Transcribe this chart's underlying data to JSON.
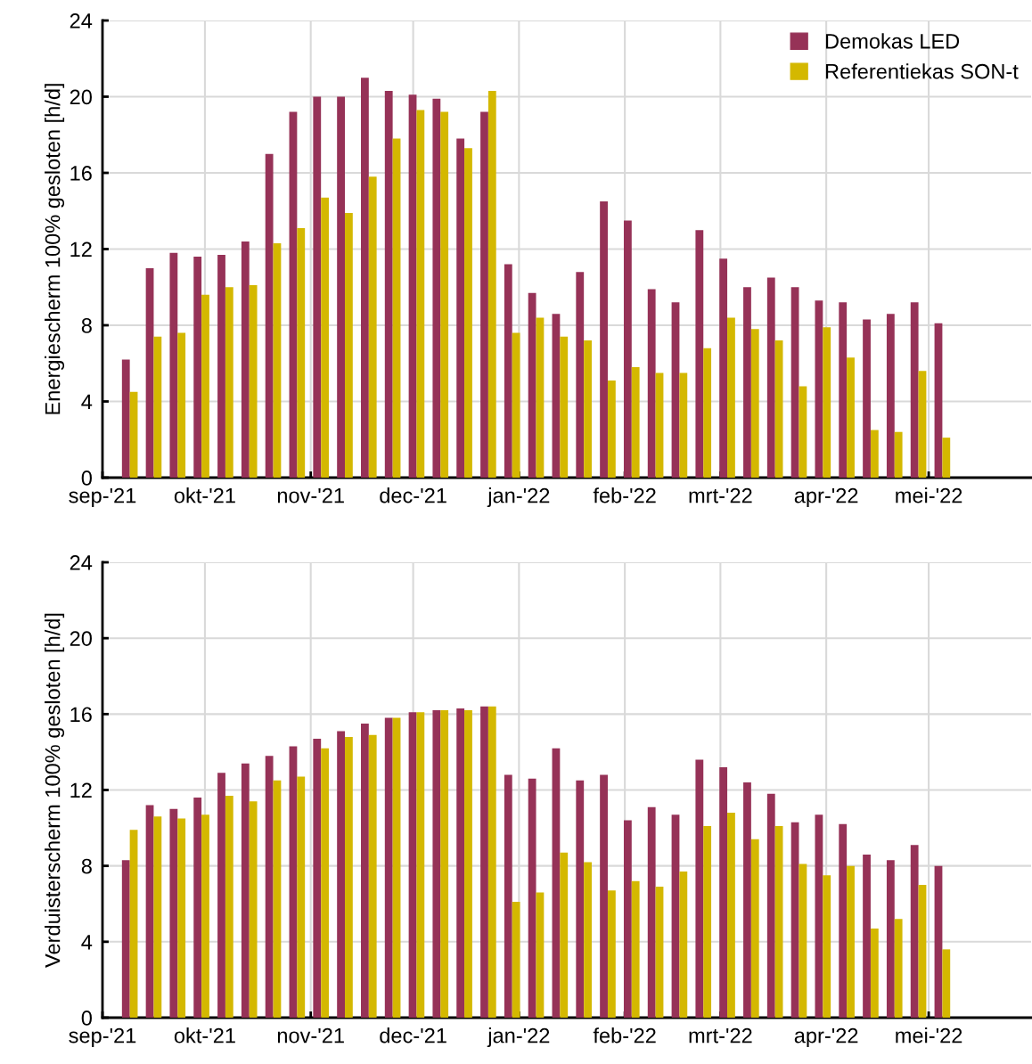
{
  "chart_data": [
    {
      "type": "bar",
      "ylabel": "Energiescherm 100% gesloten [h/d]",
      "x": [
        "2021-09-09",
        "2021-09-16",
        "2021-09-23",
        "2021-09-30",
        "2021-10-07",
        "2021-10-14",
        "2021-10-21",
        "2021-10-28",
        "2021-11-04",
        "2021-11-11",
        "2021-11-18",
        "2021-11-25",
        "2021-12-02",
        "2021-12-09",
        "2021-12-16",
        "2021-12-23",
        "2021-12-30",
        "2022-01-06",
        "2022-01-13",
        "2022-01-20",
        "2022-01-27",
        "2022-02-03",
        "2022-02-10",
        "2022-02-17",
        "2022-02-24",
        "2022-03-03",
        "2022-03-10",
        "2022-03-17",
        "2022-03-24",
        "2022-03-31",
        "2022-04-07",
        "2022-04-14",
        "2022-04-21",
        "2022-04-28",
        "2022-05-05"
      ],
      "series": [
        {
          "name": "Demokas LED",
          "color": "#963257",
          "values": [
            6.2,
            11.0,
            11.8,
            11.6,
            11.7,
            12.4,
            17.0,
            19.2,
            20.0,
            20.0,
            21.0,
            20.3,
            20.1,
            19.9,
            17.8,
            19.2,
            11.2,
            9.7,
            8.6,
            10.8,
            14.5,
            13.5,
            9.9,
            9.2,
            13.0,
            11.5,
            10.0,
            10.5,
            10.0,
            9.3,
            9.2,
            8.3,
            8.6,
            9.2,
            8.1
          ]
        },
        {
          "name": "Referentiekas SON-t",
          "color": "#d4b800",
          "values": [
            4.5,
            7.4,
            7.6,
            9.6,
            10.0,
            10.1,
            12.3,
            13.1,
            14.7,
            13.9,
            15.8,
            17.8,
            19.3,
            19.2,
            17.3,
            20.3,
            7.6,
            8.4,
            7.4,
            7.2,
            5.1,
            5.8,
            5.5,
            5.5,
            6.8,
            8.4,
            7.8,
            7.2,
            4.8,
            7.9,
            6.3,
            2.5,
            2.4,
            5.6,
            2.1
          ]
        }
      ],
      "xlim": [
        "2021-09-01",
        "2022-05-31"
      ],
      "xticks": [
        {
          "value": "2021-09-01",
          "label": "sep-'21"
        },
        {
          "value": "2021-10-01",
          "label": "okt-'21"
        },
        {
          "value": "2021-11-01",
          "label": "nov-'21"
        },
        {
          "value": "2021-12-01",
          "label": "dec-'21"
        },
        {
          "value": "2022-01-01",
          "label": "jan-'22"
        },
        {
          "value": "2022-02-01",
          "label": "feb-'22"
        },
        {
          "value": "2022-03-01",
          "label": "mrt-'22"
        },
        {
          "value": "2022-04-01",
          "label": "apr-'22"
        },
        {
          "value": "2022-05-01",
          "label": "mei-'22"
        }
      ],
      "ylim": [
        0,
        24
      ],
      "yticks": [
        0,
        4,
        8,
        12,
        16,
        20,
        24
      ],
      "grid": true,
      "legend": "top right"
    },
    {
      "type": "bar",
      "ylabel": "Verduisterscherm 100% gesloten [h/d]",
      "x": [
        "2021-09-09",
        "2021-09-16",
        "2021-09-23",
        "2021-09-30",
        "2021-10-07",
        "2021-10-14",
        "2021-10-21",
        "2021-10-28",
        "2021-11-04",
        "2021-11-11",
        "2021-11-18",
        "2021-11-25",
        "2021-12-02",
        "2021-12-09",
        "2021-12-16",
        "2021-12-23",
        "2021-12-30",
        "2022-01-06",
        "2022-01-13",
        "2022-01-20",
        "2022-01-27",
        "2022-02-03",
        "2022-02-10",
        "2022-02-17",
        "2022-02-24",
        "2022-03-03",
        "2022-03-10",
        "2022-03-17",
        "2022-03-24",
        "2022-03-31",
        "2022-04-07",
        "2022-04-14",
        "2022-04-21",
        "2022-04-28",
        "2022-05-05"
      ],
      "series": [
        {
          "color": "#963257",
          "values": [
            8.3,
            11.2,
            11.0,
            11.6,
            12.9,
            13.4,
            13.8,
            14.3,
            14.7,
            15.1,
            15.5,
            15.8,
            16.1,
            16.2,
            16.3,
            16.4,
            12.8,
            12.6,
            14.2,
            12.5,
            12.8,
            10.4,
            11.1,
            10.7,
            13.6,
            13.2,
            12.4,
            11.8,
            10.3,
            10.7,
            10.2,
            8.6,
            8.3,
            9.1,
            8.0
          ]
        },
        {
          "color": "#d4b800",
          "values": [
            9.9,
            10.6,
            10.5,
            10.7,
            11.7,
            11.4,
            12.5,
            12.7,
            14.2,
            14.8,
            14.9,
            15.8,
            16.1,
            16.2,
            16.2,
            16.4,
            6.1,
            6.6,
            8.7,
            8.2,
            6.7,
            7.2,
            6.9,
            7.7,
            10.1,
            10.8,
            9.4,
            10.1,
            8.1,
            7.5,
            8.0,
            4.7,
            5.2,
            7.0,
            3.6
          ]
        }
      ],
      "xlim": [
        "2021-09-01",
        "2022-05-31"
      ],
      "xticks": [
        {
          "value": "2021-09-01",
          "label": "sep-'21"
        },
        {
          "value": "2021-10-01",
          "label": "okt-'21"
        },
        {
          "value": "2021-11-01",
          "label": "nov-'21"
        },
        {
          "value": "2021-12-01",
          "label": "dec-'21"
        },
        {
          "value": "2022-01-01",
          "label": "jan-'22"
        },
        {
          "value": "2022-02-01",
          "label": "feb-'22"
        },
        {
          "value": "2022-03-01",
          "label": "mrt-'22"
        },
        {
          "value": "2022-04-01",
          "label": "apr-'22"
        },
        {
          "value": "2022-05-01",
          "label": "mei-'22"
        }
      ],
      "ylim": [
        0,
        24
      ],
      "yticks": [
        0,
        4,
        8,
        12,
        16,
        20,
        24
      ],
      "grid": true
    }
  ]
}
